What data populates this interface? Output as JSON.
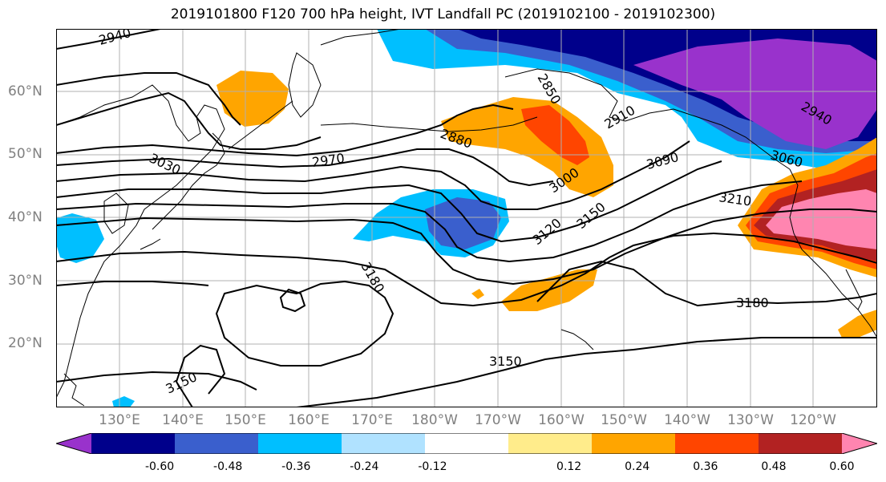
{
  "title": "2019101800 F120 700 hPa height, IVT Landfall PC (2019102100 - 2019102300)",
  "map": {
    "lat_labels": [
      "60°N",
      "50°N",
      "40°N",
      "30°N",
      "20°N"
    ],
    "lon_labels": [
      "130°E",
      "140°E",
      "150°E",
      "160°E",
      "170°E",
      "180°W",
      "170°W",
      "160°W",
      "150°W",
      "140°W",
      "130°W",
      "120°W"
    ],
    "contour_labels": [
      "2940",
      "2850",
      "2880",
      "2910",
      "2940",
      "3060",
      "2970",
      "3030",
      "3000",
      "3090",
      "3210",
      "3120",
      "3150",
      "3180",
      "3180",
      "3150",
      "3150"
    ]
  },
  "colorbar": {
    "tick_labels": [
      "-0.60",
      "-0.48",
      "-0.36",
      "-0.24",
      "-0.12",
      "0.12",
      "0.24",
      "0.36",
      "0.48",
      "0.60"
    ],
    "colors": [
      "#9932cc",
      "#00008b",
      "#3a5fcd",
      "#00bfff",
      "#b0e2ff",
      "#ffffff",
      "#ffec8b",
      "#ffa500",
      "#ff4500",
      "#b22222",
      "#ff85b0"
    ]
  }
}
